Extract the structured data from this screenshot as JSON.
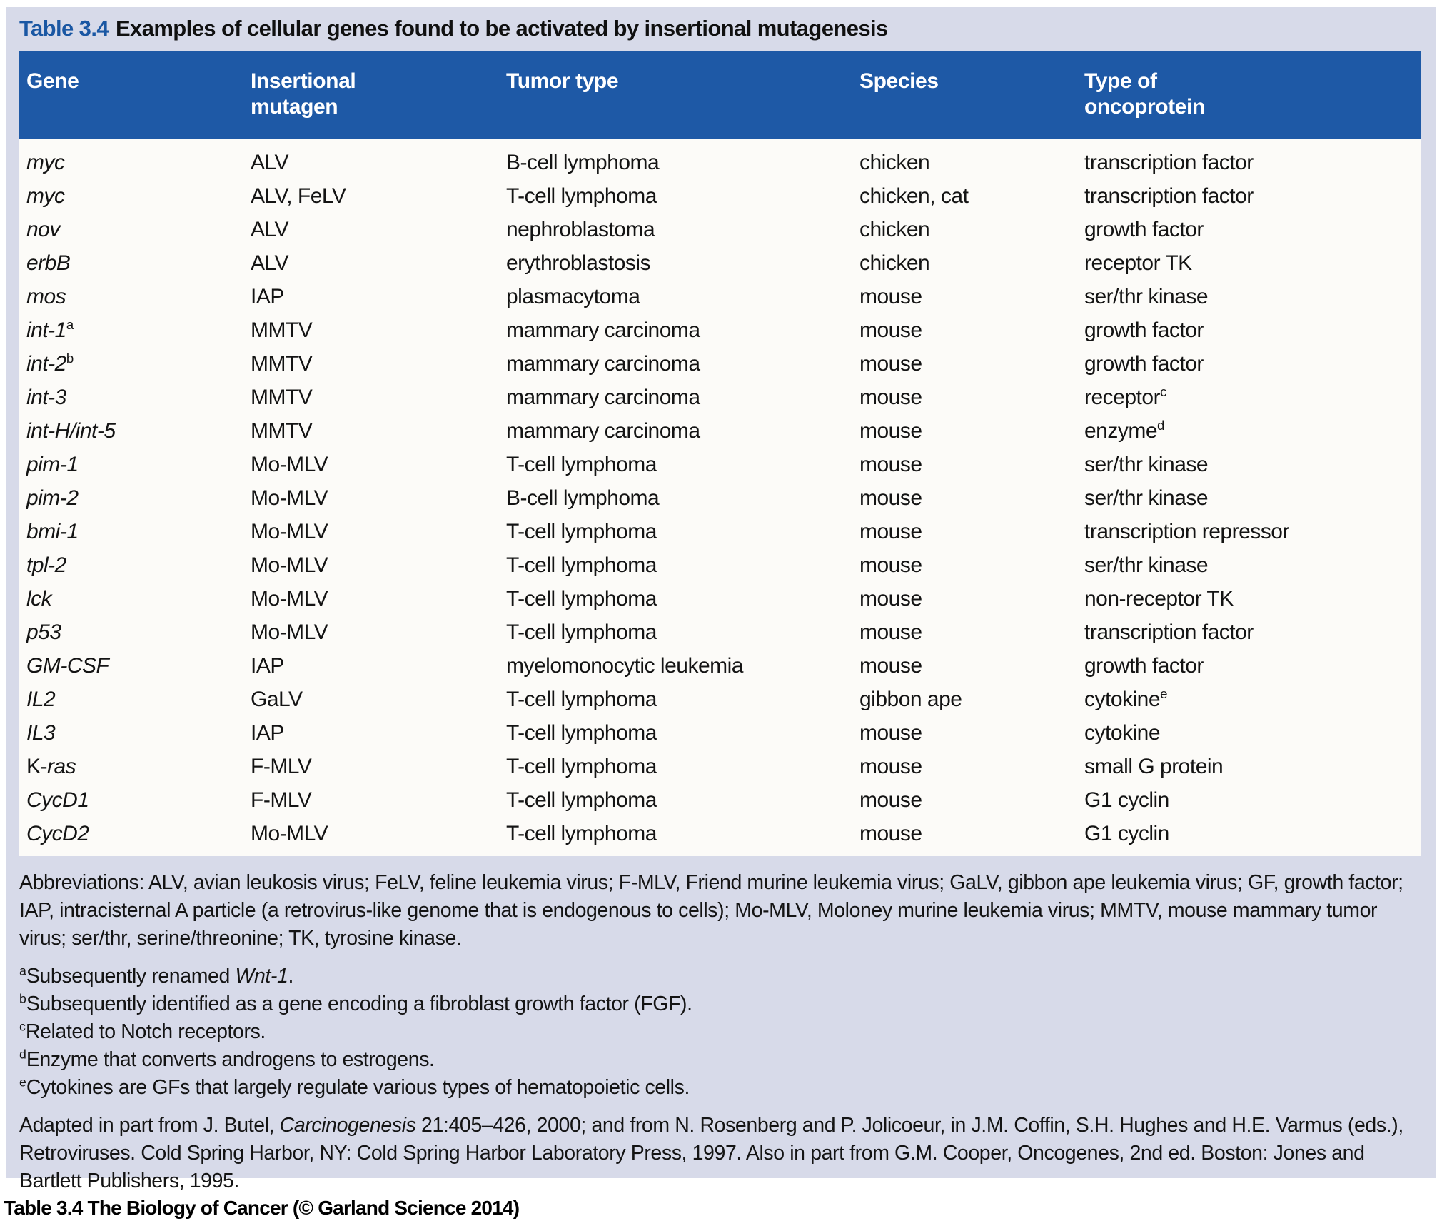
{
  "title": {
    "label": "Table 3.4",
    "text": "Examples of cellular genes found to be activated by insertional mutagenesis"
  },
  "colors": {
    "panel_lavender": "#d7dae9",
    "header_blue": "#1e59a6",
    "title_blue": "#1a57a3",
    "body_white": "#fcfbf8"
  },
  "table": {
    "headers": [
      "Gene",
      "Insertional mutagen",
      "Tumor type",
      "Species",
      "Type of oncoprotein"
    ],
    "rows": [
      {
        "gene_prefix": "",
        "gene": "myc",
        "gene_sup": "",
        "mutagen": "ALV",
        "tumor": "B-cell lymphoma",
        "species": "chicken",
        "onco": "transcription factor",
        "onco_sup": ""
      },
      {
        "gene_prefix": "",
        "gene": "myc",
        "gene_sup": "",
        "mutagen": "ALV, FeLV",
        "tumor": "T-cell lymphoma",
        "species": "chicken, cat",
        "onco": "transcription factor",
        "onco_sup": ""
      },
      {
        "gene_prefix": "",
        "gene": "nov",
        "gene_sup": "",
        "mutagen": "ALV",
        "tumor": "nephroblastoma",
        "species": "chicken",
        "onco": "growth factor",
        "onco_sup": ""
      },
      {
        "gene_prefix": "",
        "gene": "erbB",
        "gene_sup": "",
        "mutagen": "ALV",
        "tumor": "erythroblastosis",
        "species": "chicken",
        "onco": "receptor TK",
        "onco_sup": ""
      },
      {
        "gene_prefix": "",
        "gene": "mos",
        "gene_sup": "",
        "mutagen": " IAP",
        "tumor": "plasmacytoma",
        "species": "mouse",
        "onco": "ser/thr kinase",
        "onco_sup": ""
      },
      {
        "gene_prefix": "",
        "gene": "int-1",
        "gene_sup": "a",
        "mutagen": "MMTV",
        "tumor": "mammary carcinoma",
        "species": "mouse",
        "onco": "growth factor",
        "onco_sup": ""
      },
      {
        "gene_prefix": "",
        "gene": "int-2",
        "gene_sup": "b",
        "mutagen": "MMTV",
        "tumor": "mammary carcinoma",
        "species": "mouse",
        "onco": "growth factor",
        "onco_sup": ""
      },
      {
        "gene_prefix": "",
        "gene": "int-3",
        "gene_sup": "",
        "mutagen": "MMTV",
        "tumor": "mammary carcinoma",
        "species": "mouse",
        "onco": "receptor",
        "onco_sup": "c"
      },
      {
        "gene_prefix": "",
        "gene": "int-H/int-5",
        "gene_sup": "",
        "mutagen": "MMTV",
        "tumor": "mammary carcinoma",
        "species": "mouse",
        "onco": "enzyme",
        "onco_sup": "d"
      },
      {
        "gene_prefix": "",
        "gene": "pim-1",
        "gene_sup": "",
        "mutagen": "Mo-MLV",
        "tumor": "T-cell lymphoma",
        "species": "mouse",
        "onco": "ser/thr kinase",
        "onco_sup": ""
      },
      {
        "gene_prefix": "",
        "gene": "pim-2",
        "gene_sup": "",
        "mutagen": "Mo-MLV",
        "tumor": "B-cell lymphoma",
        "species": "mouse",
        "onco": "ser/thr kinase",
        "onco_sup": ""
      },
      {
        "gene_prefix": "",
        "gene": "bmi-1",
        "gene_sup": "",
        "mutagen": "Mo-MLV",
        "tumor": "T-cell lymphoma",
        "species": "mouse",
        "onco": "transcription repressor",
        "onco_sup": ""
      },
      {
        "gene_prefix": "",
        "gene": "tpl-2",
        "gene_sup": "",
        "mutagen": "Mo-MLV",
        "tumor": "T-cell lymphoma",
        "species": "mouse",
        "onco": "ser/thr kinase",
        "onco_sup": ""
      },
      {
        "gene_prefix": "",
        "gene": "lck",
        "gene_sup": "",
        "mutagen": "Mo-MLV",
        "tumor": "T-cell lymphoma",
        "species": "mouse",
        "onco": "non-receptor TK",
        "onco_sup": ""
      },
      {
        "gene_prefix": "",
        "gene": "p53",
        "gene_sup": "",
        "mutagen": "Mo-MLV",
        "tumor": "T-cell lymphoma",
        "species": "mouse",
        "onco": "transcription factor",
        "onco_sup": ""
      },
      {
        "gene_prefix": "",
        "gene": "GM-CSF",
        "gene_sup": "",
        "mutagen": "IAP",
        "tumor": "myelomonocytic leukemia",
        "species": "mouse",
        "onco": "growth factor",
        "onco_sup": ""
      },
      {
        "gene_prefix": "",
        "gene": "IL2",
        "gene_sup": "",
        "mutagen": "GaLV",
        "tumor": "T-cell lymphoma",
        "species": "gibbon ape",
        "onco": "cytokine",
        "onco_sup": "e"
      },
      {
        "gene_prefix": "",
        "gene": "IL3",
        "gene_sup": "",
        "mutagen": "IAP",
        "tumor": "T-cell lymphoma",
        "species": "mouse",
        "onco": "cytokine",
        "onco_sup": ""
      },
      {
        "gene_prefix": "K-",
        "gene": "ras",
        "gene_sup": "",
        "mutagen": "F-MLV",
        "tumor": "T-cell lymphoma",
        "species": "mouse",
        "onco": "small G protein",
        "onco_sup": ""
      },
      {
        "gene_prefix": "",
        "gene": "CycD1",
        "gene_sup": "",
        "mutagen": "F-MLV",
        "tumor": "T-cell lymphoma",
        "species": "mouse",
        "onco": "G1 cyclin",
        "onco_sup": ""
      },
      {
        "gene_prefix": "",
        "gene": "CycD2",
        "gene_sup": "",
        "mutagen": "Mo-MLV",
        "tumor": "T-cell lymphoma",
        "species": "mouse",
        "onco": "G1 cyclin",
        "onco_sup": ""
      }
    ]
  },
  "notes": {
    "abbreviations": "Abbreviations: ALV, avian leukosis virus; FeLV, feline leukemia virus; F-MLV, Friend murine leukemia virus; GaLV, gibbon ape leukemia virus; GF, growth factor; IAP, intracisternal A particle (a retrovirus-like genome that is endogenous to cells); Mo-MLV, Moloney murine leukemia virus; MMTV, mouse mammary tumor virus; ser/thr, serine/threonine; TK, tyrosine kinase.",
    "footnotes": [
      {
        "sup": "a",
        "pre": "Subsequently renamed ",
        "italic": "Wnt-1",
        "post": "."
      },
      {
        "sup": "b",
        "pre": "Subsequently identified as a gene encoding a fibroblast growth factor (FGF).",
        "italic": "",
        "post": ""
      },
      {
        "sup": "c",
        "pre": "Related to Notch receptors.",
        "italic": "",
        "post": ""
      },
      {
        "sup": "d",
        "pre": "Enzyme that converts androgens to estrogens.",
        "italic": "",
        "post": ""
      },
      {
        "sup": "e",
        "pre": "Cytokines are GFs that largely regulate various types of hematopoietic cells.",
        "italic": "",
        "post": ""
      }
    ]
  },
  "citation": {
    "pre": "Adapted in part from J. Butel, ",
    "italic": "Carcinogenesis",
    "post": " 21:405–426, 2000; and from N. Rosenberg and P. Jolicoeur, in J.M. Coffin, S.H. Hughes and H.E. Varmus (eds.), Retroviruses. Cold Spring Harbor, NY: Cold Spring Harbor Laboratory Press, 1997. Also in part from G.M. Cooper, Oncogenes, 2nd ed. Boston: Jones and Bartlett Publishers, 1995."
  },
  "caption": {
    "text": "Table 3.4 The Biology of Cancer (© Garland Science 2014)"
  }
}
